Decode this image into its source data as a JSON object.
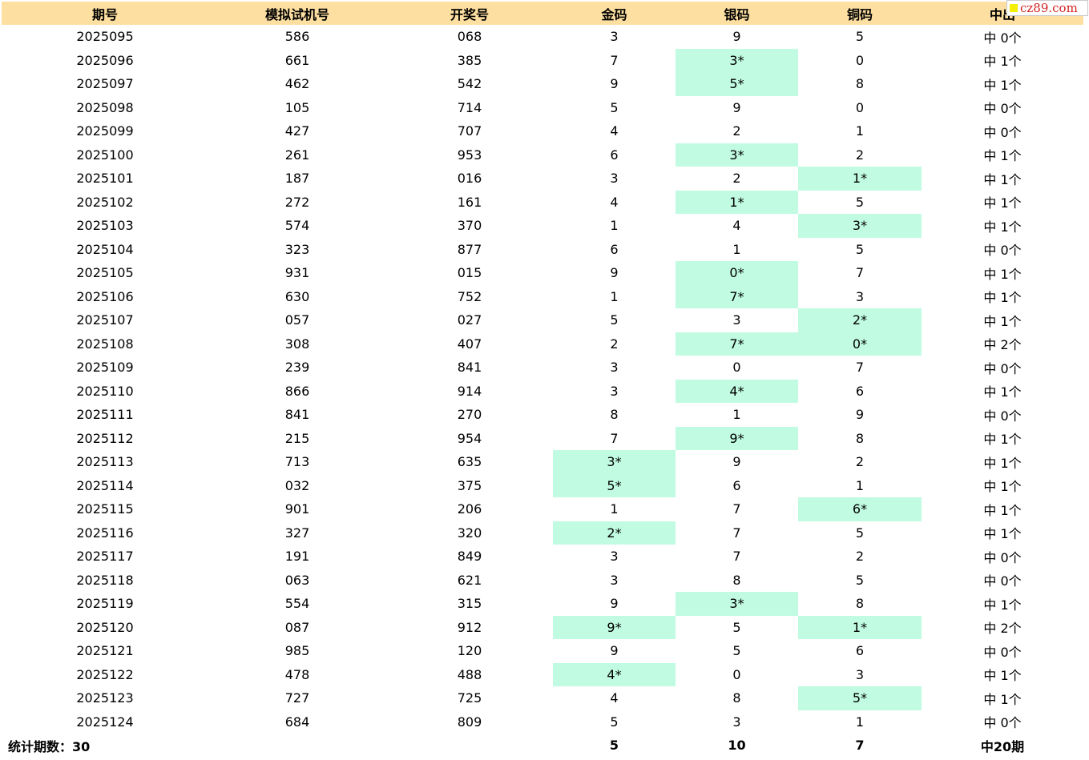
{
  "columns": [
    "期号",
    "模拟试机号",
    "开奖号",
    "金码",
    "银码",
    "铜码",
    "中出"
  ],
  "rows": [
    {
      "issue": "2025095",
      "sim": "586",
      "draw": "068",
      "gold": "3",
      "silver": "9",
      "copper": "5",
      "result": "中 0个",
      "hits": []
    },
    {
      "issue": "2025096",
      "sim": "661",
      "draw": "385",
      "gold": "7",
      "silver": "3*",
      "copper": "0",
      "result": "中 1个",
      "hits": [
        "silver"
      ]
    },
    {
      "issue": "2025097",
      "sim": "462",
      "draw": "542",
      "gold": "9",
      "silver": "5*",
      "copper": "8",
      "result": "中 1个",
      "hits": [
        "silver"
      ]
    },
    {
      "issue": "2025098",
      "sim": "105",
      "draw": "714",
      "gold": "5",
      "silver": "9",
      "copper": "0",
      "result": "中 0个",
      "hits": []
    },
    {
      "issue": "2025099",
      "sim": "427",
      "draw": "707",
      "gold": "4",
      "silver": "2",
      "copper": "1",
      "result": "中 0个",
      "hits": []
    },
    {
      "issue": "2025100",
      "sim": "261",
      "draw": "953",
      "gold": "6",
      "silver": "3*",
      "copper": "2",
      "result": "中 1个",
      "hits": [
        "silver"
      ]
    },
    {
      "issue": "2025101",
      "sim": "187",
      "draw": "016",
      "gold": "3",
      "silver": "2",
      "copper": "1*",
      "result": "中 1个",
      "hits": [
        "copper"
      ]
    },
    {
      "issue": "2025102",
      "sim": "272",
      "draw": "161",
      "gold": "4",
      "silver": "1*",
      "copper": "5",
      "result": "中 1个",
      "hits": [
        "silver"
      ]
    },
    {
      "issue": "2025103",
      "sim": "574",
      "draw": "370",
      "gold": "1",
      "silver": "4",
      "copper": "3*",
      "result": "中 1个",
      "hits": [
        "copper"
      ]
    },
    {
      "issue": "2025104",
      "sim": "323",
      "draw": "877",
      "gold": "6",
      "silver": "1",
      "copper": "5",
      "result": "中 0个",
      "hits": []
    },
    {
      "issue": "2025105",
      "sim": "931",
      "draw": "015",
      "gold": "9",
      "silver": "0*",
      "copper": "7",
      "result": "中 1个",
      "hits": [
        "silver"
      ]
    },
    {
      "issue": "2025106",
      "sim": "630",
      "draw": "752",
      "gold": "1",
      "silver": "7*",
      "copper": "3",
      "result": "中 1个",
      "hits": [
        "silver"
      ]
    },
    {
      "issue": "2025107",
      "sim": "057",
      "draw": "027",
      "gold": "5",
      "silver": "3",
      "copper": "2*",
      "result": "中 1个",
      "hits": [
        "copper"
      ]
    },
    {
      "issue": "2025108",
      "sim": "308",
      "draw": "407",
      "gold": "2",
      "silver": "7*",
      "copper": "0*",
      "result": "中 2个",
      "hits": [
        "silver",
        "copper"
      ]
    },
    {
      "issue": "2025109",
      "sim": "239",
      "draw": "841",
      "gold": "3",
      "silver": "0",
      "copper": "7",
      "result": "中 0个",
      "hits": []
    },
    {
      "issue": "2025110",
      "sim": "866",
      "draw": "914",
      "gold": "3",
      "silver": "4*",
      "copper": "6",
      "result": "中 1个",
      "hits": [
        "silver"
      ]
    },
    {
      "issue": "2025111",
      "sim": "841",
      "draw": "270",
      "gold": "8",
      "silver": "1",
      "copper": "9",
      "result": "中 0个",
      "hits": []
    },
    {
      "issue": "2025112",
      "sim": "215",
      "draw": "954",
      "gold": "7",
      "silver": "9*",
      "copper": "8",
      "result": "中 1个",
      "hits": [
        "silver"
      ]
    },
    {
      "issue": "2025113",
      "sim": "713",
      "draw": "635",
      "gold": "3*",
      "silver": "9",
      "copper": "2",
      "result": "中 1个",
      "hits": [
        "gold"
      ]
    },
    {
      "issue": "2025114",
      "sim": "032",
      "draw": "375",
      "gold": "5*",
      "silver": "6",
      "copper": "1",
      "result": "中 1个",
      "hits": [
        "gold"
      ]
    },
    {
      "issue": "2025115",
      "sim": "901",
      "draw": "206",
      "gold": "1",
      "silver": "7",
      "copper": "6*",
      "result": "中 1个",
      "hits": [
        "copper"
      ]
    },
    {
      "issue": "2025116",
      "sim": "327",
      "draw": "320",
      "gold": "2*",
      "silver": "7",
      "copper": "5",
      "result": "中 1个",
      "hits": [
        "gold"
      ]
    },
    {
      "issue": "2025117",
      "sim": "191",
      "draw": "849",
      "gold": "3",
      "silver": "7",
      "copper": "2",
      "result": "中 0个",
      "hits": []
    },
    {
      "issue": "2025118",
      "sim": "063",
      "draw": "621",
      "gold": "3",
      "silver": "8",
      "copper": "5",
      "result": "中 0个",
      "hits": []
    },
    {
      "issue": "2025119",
      "sim": "554",
      "draw": "315",
      "gold": "9",
      "silver": "3*",
      "copper": "8",
      "result": "中 1个",
      "hits": [
        "silver"
      ]
    },
    {
      "issue": "2025120",
      "sim": "087",
      "draw": "912",
      "gold": "9*",
      "silver": "5",
      "copper": "1*",
      "result": "中 2个",
      "hits": [
        "gold",
        "copper"
      ]
    },
    {
      "issue": "2025121",
      "sim": "985",
      "draw": "120",
      "gold": "9",
      "silver": "5",
      "copper": "6",
      "result": "中 0个",
      "hits": []
    },
    {
      "issue": "2025122",
      "sim": "478",
      "draw": "488",
      "gold": "4*",
      "silver": "0",
      "copper": "3",
      "result": "中 1个",
      "hits": [
        "gold"
      ]
    },
    {
      "issue": "2025123",
      "sim": "727",
      "draw": "725",
      "gold": "4",
      "silver": "8",
      "copper": "5*",
      "result": "中 1个",
      "hits": [
        "copper"
      ]
    },
    {
      "issue": "2025124",
      "sim": "684",
      "draw": "809",
      "gold": "5",
      "silver": "3",
      "copper": "1",
      "result": "中 0个",
      "hits": []
    }
  ],
  "footer": {
    "label": "统计期数：30",
    "gold": "5",
    "silver": "10",
    "copper": "7",
    "result": "中20期"
  },
  "watermark": {
    "text": "cz89.com"
  },
  "colors": {
    "header_bg": "#fddfa1",
    "hit_bg": "#c0fbe2",
    "watermark_text": "#d42222",
    "watermark_square": "#f4ee00"
  }
}
